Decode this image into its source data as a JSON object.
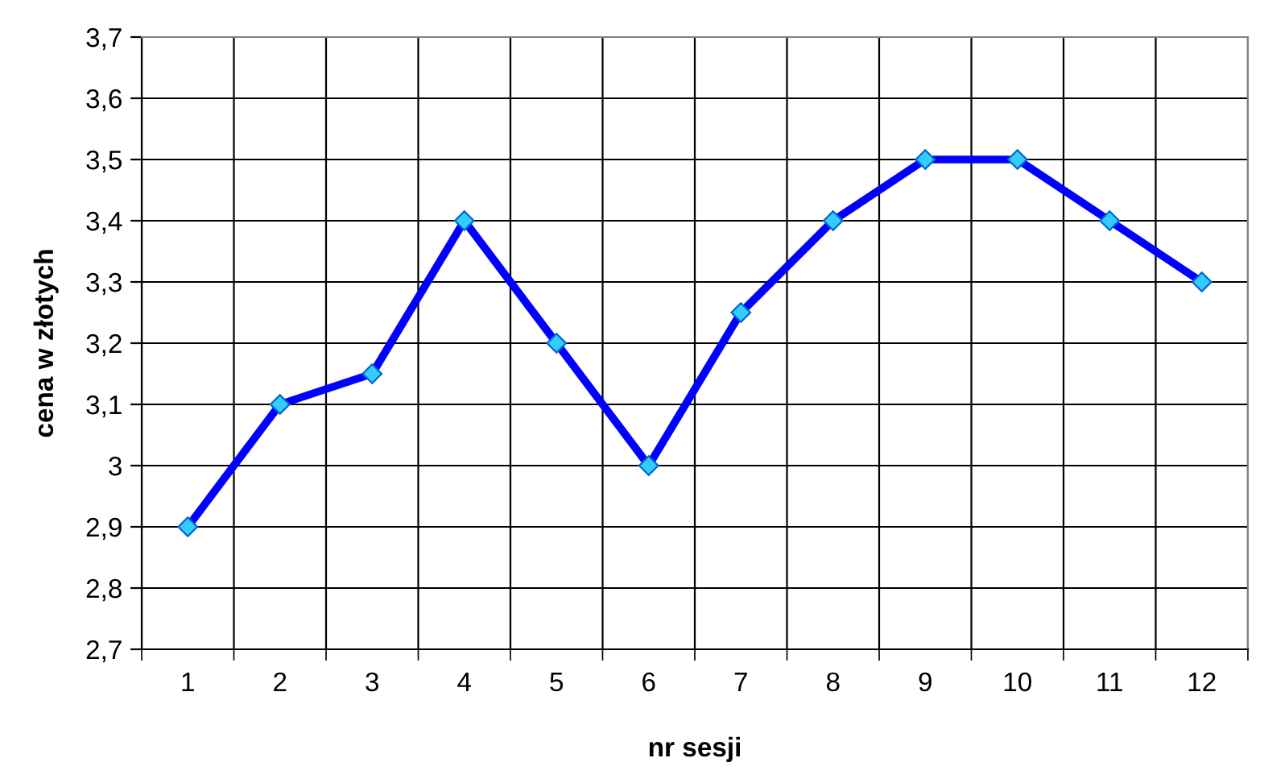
{
  "chart_data": {
    "type": "line",
    "xlabel": "nr sesji",
    "ylabel": "cena w złotych",
    "categories": [
      "1",
      "2",
      "3",
      "4",
      "5",
      "6",
      "7",
      "8",
      "9",
      "10",
      "11",
      "12"
    ],
    "series": [
      {
        "color": "#0000ff",
        "values": [
          2.9,
          3.1,
          3.15,
          3.4,
          3.2,
          3.0,
          3.25,
          3.4,
          3.5,
          3.5,
          3.4,
          3.3
        ]
      }
    ],
    "ylim": [
      2.7,
      3.7
    ],
    "yticks": [
      {
        "value": 2.7,
        "label": "2,7"
      },
      {
        "value": 2.8,
        "label": "2,8"
      },
      {
        "value": 2.9,
        "label": "2,9"
      },
      3,
      {
        "value": 3.1,
        "label": "3,1"
      },
      {
        "value": 3.2,
        "label": "3,2"
      },
      {
        "value": 3.3,
        "label": "3,3"
      },
      {
        "value": 3.4,
        "label": "3,4"
      },
      {
        "value": 3.5,
        "label": "3,5"
      },
      {
        "value": 3.6,
        "label": "3,6"
      },
      {
        "value": 3.7,
        "label": "3,7"
      }
    ],
    "grid": true,
    "marker": "diamond",
    "line_style": "solid"
  }
}
